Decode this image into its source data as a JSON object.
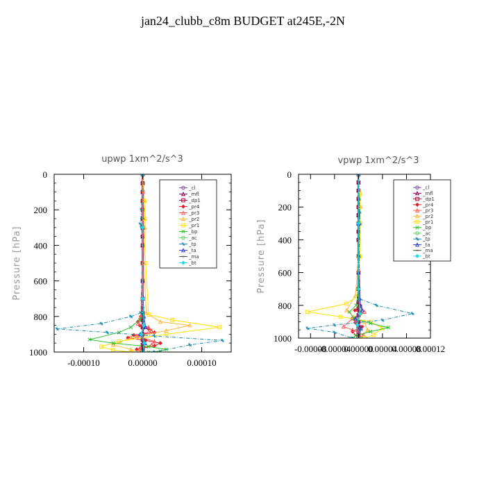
{
  "title": "jan24_clubb_c8m  BUDGET at245E,-2N",
  "chart_data": [
    {
      "type": "line",
      "title": "upwp   1xm^2/s^3",
      "ylabel": "Pressure [hPa]",
      "xlabel": "",
      "ylim": [
        1000,
        0
      ],
      "xlim": [
        -0.00015,
        0.00015
      ],
      "yticks": [
        0,
        200,
        400,
        600,
        800,
        1000
      ],
      "xticks": [
        -0.0001,
        0,
        0.0001
      ],
      "xtick_labels": [
        "-0.00010",
        "0.00000",
        "0.00010"
      ],
      "legend": [
        "_cl",
        "_mfl",
        "_dp1",
        "_pr4",
        "_pr3",
        "_pr2",
        "_pr1",
        "_bp",
        "_ac",
        "_tp",
        "_ta",
        "_ma",
        "_bt"
      ],
      "series": [
        {
          "name": "_cl",
          "color": "#7f4fa0",
          "x": [
            0,
            0,
            0,
            0,
            0,
            0,
            0,
            0,
            0,
            0,
            0,
            0,
            0,
            0,
            0,
            0,
            0,
            0,
            0,
            0
          ],
          "y": [
            0,
            50,
            100,
            150,
            200,
            250,
            300,
            350,
            400,
            500,
            600,
            700,
            780,
            820,
            860,
            900,
            930,
            960,
            980,
            1000
          ]
        },
        {
          "name": "_mfl",
          "color": "#8b0063",
          "x": [
            0,
            0,
            0,
            0,
            0,
            0,
            0,
            0,
            0,
            0,
            0,
            0,
            0,
            0,
            0,
            0,
            0,
            0,
            0,
            0
          ],
          "y": [
            0,
            50,
            100,
            150,
            200,
            250,
            300,
            350,
            400,
            500,
            600,
            700,
            780,
            820,
            860,
            900,
            930,
            960,
            980,
            1000
          ]
        },
        {
          "name": "_dp1",
          "color": "#a0003c",
          "x": [
            0,
            0,
            0,
            0,
            0,
            0,
            0,
            0,
            0,
            0,
            0,
            0,
            0,
            0,
            0,
            0,
            0,
            0,
            0,
            0
          ],
          "y": [
            0,
            50,
            100,
            150,
            200,
            250,
            300,
            350,
            400,
            500,
            600,
            700,
            780,
            820,
            860,
            900,
            930,
            960,
            980,
            1000
          ]
        },
        {
          "name": "_pr4",
          "color": "#e0202a",
          "x": [
            0,
            0,
            0,
            0,
            0,
            0,
            0,
            0,
            -3e-06,
            -8e-06,
            -5e-06,
            1e-05,
            2e-05,
            -1.5e-05,
            -2.5e-05,
            5e-06,
            3e-05,
            2e-05,
            -1e-05,
            0
          ],
          "y": [
            0,
            50,
            100,
            150,
            200,
            300,
            500,
            700,
            800,
            830,
            850,
            870,
            890,
            905,
            920,
            935,
            950,
            965,
            985,
            1000
          ]
        },
        {
          "name": "_pr3",
          "color": "#ff5a5a",
          "x": [
            0,
            0,
            0,
            -3e-06,
            -8e-06,
            1e-05,
            1.5e-05,
            -1e-05,
            2e-05,
            1.5e-05,
            -5e-06,
            0
          ],
          "y": [
            0,
            200,
            500,
            800,
            840,
            860,
            880,
            910,
            940,
            960,
            980,
            1000
          ]
        },
        {
          "name": "_pr2",
          "color": "#ffb43c",
          "x": [
            0,
            3e-06,
            3e-06,
            4e-06,
            2e-06,
            6e-06,
            3e-05,
            8e-05,
            4e-05,
            -2e-05,
            -5e-05,
            -2e-05,
            -5e-06
          ],
          "y": [
            0,
            150,
            250,
            300,
            500,
            780,
            830,
            850,
            880,
            920,
            960,
            985,
            1000
          ]
        },
        {
          "name": "_pr1",
          "color": "#ffe000",
          "x": [
            0,
            3e-06,
            4e-06,
            2e-06,
            5e-06,
            1e-05,
            5e-05,
            0.00013,
            4e-05,
            -4e-05,
            -7e-05,
            -5e-05,
            -2e-05
          ],
          "y": [
            0,
            150,
            250,
            300,
            500,
            790,
            820,
            860,
            900,
            940,
            970,
            990,
            1000
          ]
        },
        {
          "name": "_bp",
          "color": "#2ec02e",
          "x": [
            0,
            0,
            0,
            0,
            -5e-06,
            -2e-05,
            -4e-05,
            -9e-05,
            -5e-05,
            1e-05,
            4e-05,
            3e-05,
            1e-05
          ],
          "y": [
            0,
            300,
            600,
            780,
            820,
            860,
            890,
            930,
            950,
            970,
            985,
            995,
            1000
          ]
        },
        {
          "name": "_ac",
          "color": "#60d060",
          "x": [
            0,
            0,
            0,
            2e-06,
            -3e-06,
            2e-06,
            0
          ],
          "y": [
            0,
            300,
            700,
            850,
            900,
            950,
            1000
          ]
        },
        {
          "name": "_tp",
          "color": "#1a8aaa",
          "x": [
            0,
            -2e-06,
            -4e-06,
            -2e-06,
            0,
            -3e-06,
            -2e-05,
            -7e-05,
            -0.000145,
            -6e-05,
            2e-05,
            0.000135,
            8e-05,
            2e-05
          ],
          "y": [
            0,
            200,
            280,
            300,
            400,
            780,
            800,
            840,
            870,
            890,
            910,
            935,
            960,
            1000
          ]
        },
        {
          "name": "_ta",
          "color": "#3a3ad0",
          "x": [
            0,
            0,
            0,
            2e-06,
            5e-06,
            -4e-06,
            4e-06,
            0
          ],
          "y": [
            0,
            300,
            600,
            800,
            860,
            900,
            950,
            1000
          ]
        },
        {
          "name": "_ma",
          "color": "#505050",
          "x": [
            0,
            0,
            0,
            0,
            0
          ],
          "y": [
            0,
            250,
            500,
            750,
            1000
          ]
        },
        {
          "name": "_bt",
          "color": "#20d8f0",
          "x": [
            0,
            0,
            0,
            2e-06,
            -2e-06,
            3e-06,
            0
          ],
          "y": [
            0,
            300,
            700,
            850,
            900,
            950,
            1000
          ]
        }
      ]
    },
    {
      "type": "line",
      "title": "vpwp   1xm^2/s^3",
      "ylabel": "Pressure [hPa]",
      "xlabel": "",
      "ylim": [
        1000,
        0
      ],
      "xlim": [
        -0.0001,
        0.00012
      ],
      "yticks": [
        0,
        200,
        400,
        600,
        800,
        1000
      ],
      "xticks": [
        -8e-05,
        -4e-05,
        0,
        4e-05,
        8e-05,
        0.00012
      ],
      "xtick_labels": [
        "-0.00008",
        "-0.00004",
        "0.00000",
        "0.00004",
        "0.00008",
        "0.00012"
      ],
      "legend": [
        "_cl",
        "_mfl",
        "_dp1",
        "_pr4",
        "_pr3",
        "_pr2",
        "_pr1",
        "_bp",
        "_ac",
        "_tp",
        "_ta",
        "_ma",
        "_bt"
      ],
      "series": [
        {
          "name": "_cl",
          "color": "#7f4fa0",
          "x": [
            0,
            0,
            0,
            0,
            0,
            0,
            0,
            0,
            0,
            0,
            0,
            0,
            0,
            0,
            0,
            0,
            0,
            0,
            0,
            0
          ],
          "y": [
            0,
            50,
            100,
            150,
            200,
            250,
            300,
            350,
            400,
            500,
            600,
            700,
            780,
            820,
            860,
            900,
            930,
            960,
            980,
            1000
          ]
        },
        {
          "name": "_mfl",
          "color": "#8b0063",
          "x": [
            0,
            0,
            0,
            0,
            0,
            0,
            0,
            0,
            0,
            0,
            0,
            0,
            0,
            0,
            0,
            0,
            0,
            0,
            0,
            0
          ],
          "y": [
            0,
            50,
            100,
            150,
            200,
            250,
            300,
            350,
            400,
            500,
            600,
            700,
            780,
            820,
            860,
            900,
            930,
            960,
            980,
            1000
          ]
        },
        {
          "name": "_dp1",
          "color": "#a0003c",
          "x": [
            0,
            0,
            0,
            0,
            0,
            0,
            0,
            0,
            0,
            0,
            0,
            0,
            0,
            0,
            0,
            0,
            0,
            0,
            0,
            0
          ],
          "y": [
            0,
            50,
            100,
            150,
            200,
            250,
            300,
            350,
            400,
            500,
            600,
            700,
            780,
            820,
            860,
            900,
            930,
            960,
            980,
            1000
          ]
        },
        {
          "name": "_pr4",
          "color": "#e0202a",
          "x": [
            0,
            0,
            0,
            3e-06,
            -6e-06,
            4e-06,
            -1e-05,
            -5e-06,
            6e-06,
            -1e-05,
            0
          ],
          "y": [
            0,
            200,
            500,
            800,
            830,
            850,
            880,
            905,
            930,
            960,
            1000
          ]
        },
        {
          "name": "_pr3",
          "color": "#ff5a5a",
          "x": [
            0,
            0,
            3e-06,
            1e-05,
            -1e-05,
            -2.5e-05,
            -1e-05,
            8e-06,
            0
          ],
          "y": [
            0,
            300,
            800,
            840,
            880,
            930,
            950,
            980,
            1000
          ]
        },
        {
          "name": "_pr2",
          "color": "#ffb43c",
          "x": [
            0,
            2e-06,
            3e-06,
            3e-06,
            0,
            -5e-06,
            -2e-05,
            -8e-06,
            1e-05,
            1.5e-05,
            5e-06
          ],
          "y": [
            0,
            120,
            200,
            300,
            500,
            740,
            830,
            870,
            900,
            950,
            1000
          ]
        },
        {
          "name": "_pr1",
          "color": "#ffe000",
          "x": [
            0,
            2e-06,
            3e-06,
            3e-06,
            2e-06,
            0,
            -2e-05,
            -8.5e-05,
            -3e-05,
            2e-05,
            4e-05,
            2.5e-05,
            1e-05
          ],
          "y": [
            0,
            120,
            200,
            300,
            500,
            740,
            790,
            840,
            870,
            900,
            940,
            980,
            1000
          ]
        },
        {
          "name": "_bp",
          "color": "#2ec02e",
          "x": [
            0,
            0,
            0,
            -4e-06,
            -1.5e-05,
            -8e-06,
            2e-05,
            5e-05,
            2e-05,
            -5e-06,
            -1e-05
          ],
          "y": [
            0,
            300,
            700,
            800,
            840,
            880,
            910,
            935,
            960,
            985,
            1000
          ]
        },
        {
          "name": "_ac",
          "color": "#60d060",
          "x": [
            0,
            0,
            3e-06,
            -3e-06,
            2e-06,
            0
          ],
          "y": [
            0,
            500,
            850,
            900,
            950,
            1000
          ]
        },
        {
          "name": "_tp",
          "color": "#1a8aaa",
          "x": [
            0,
            1e-06,
            2e-06,
            2e-06,
            1e-06,
            2e-06,
            3e-05,
            9e-05,
            4e-05,
            -4e-05,
            -8.5e-05,
            -4e-05,
            -1e-05
          ],
          "y": [
            0,
            150,
            230,
            300,
            500,
            760,
            800,
            850,
            890,
            920,
            940,
            965,
            1000
          ]
        },
        {
          "name": "_ta",
          "color": "#3a3ad0",
          "x": [
            0,
            0,
            0,
            3e-06,
            6e-06,
            -5e-06,
            4e-06,
            0
          ],
          "y": [
            0,
            300,
            600,
            800,
            830,
            880,
            940,
            1000
          ]
        },
        {
          "name": "_ma",
          "color": "#505050",
          "x": [
            0,
            0,
            0,
            0,
            0
          ],
          "y": [
            0,
            250,
            500,
            750,
            1000
          ]
        },
        {
          "name": "_bt",
          "color": "#20d8f0",
          "x": [
            0,
            0,
            0,
            2e-06,
            -2e-06,
            0
          ],
          "y": [
            0,
            300,
            700,
            850,
            920,
            1000
          ]
        }
      ]
    }
  ]
}
